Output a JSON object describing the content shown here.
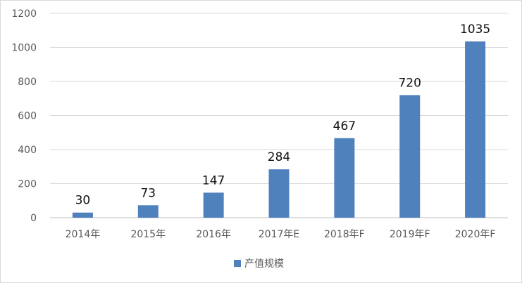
{
  "chart_data": {
    "type": "bar",
    "categories": [
      "2014年",
      "2015年",
      "2016年",
      "2017年E",
      "2018年F",
      "2019年F",
      "2020年F"
    ],
    "series": [
      {
        "name": "产值规模",
        "values": [
          30,
          73,
          147,
          284,
          467,
          720,
          1035
        ],
        "color": "#4f81bd"
      }
    ],
    "title": "",
    "xlabel": "",
    "ylabel": "",
    "ylim": [
      0,
      1200
    ],
    "yticks": [
      0,
      200,
      400,
      600,
      800,
      1000,
      1200
    ],
    "grid": true,
    "legend_position": "bottom",
    "data_labels": true
  }
}
